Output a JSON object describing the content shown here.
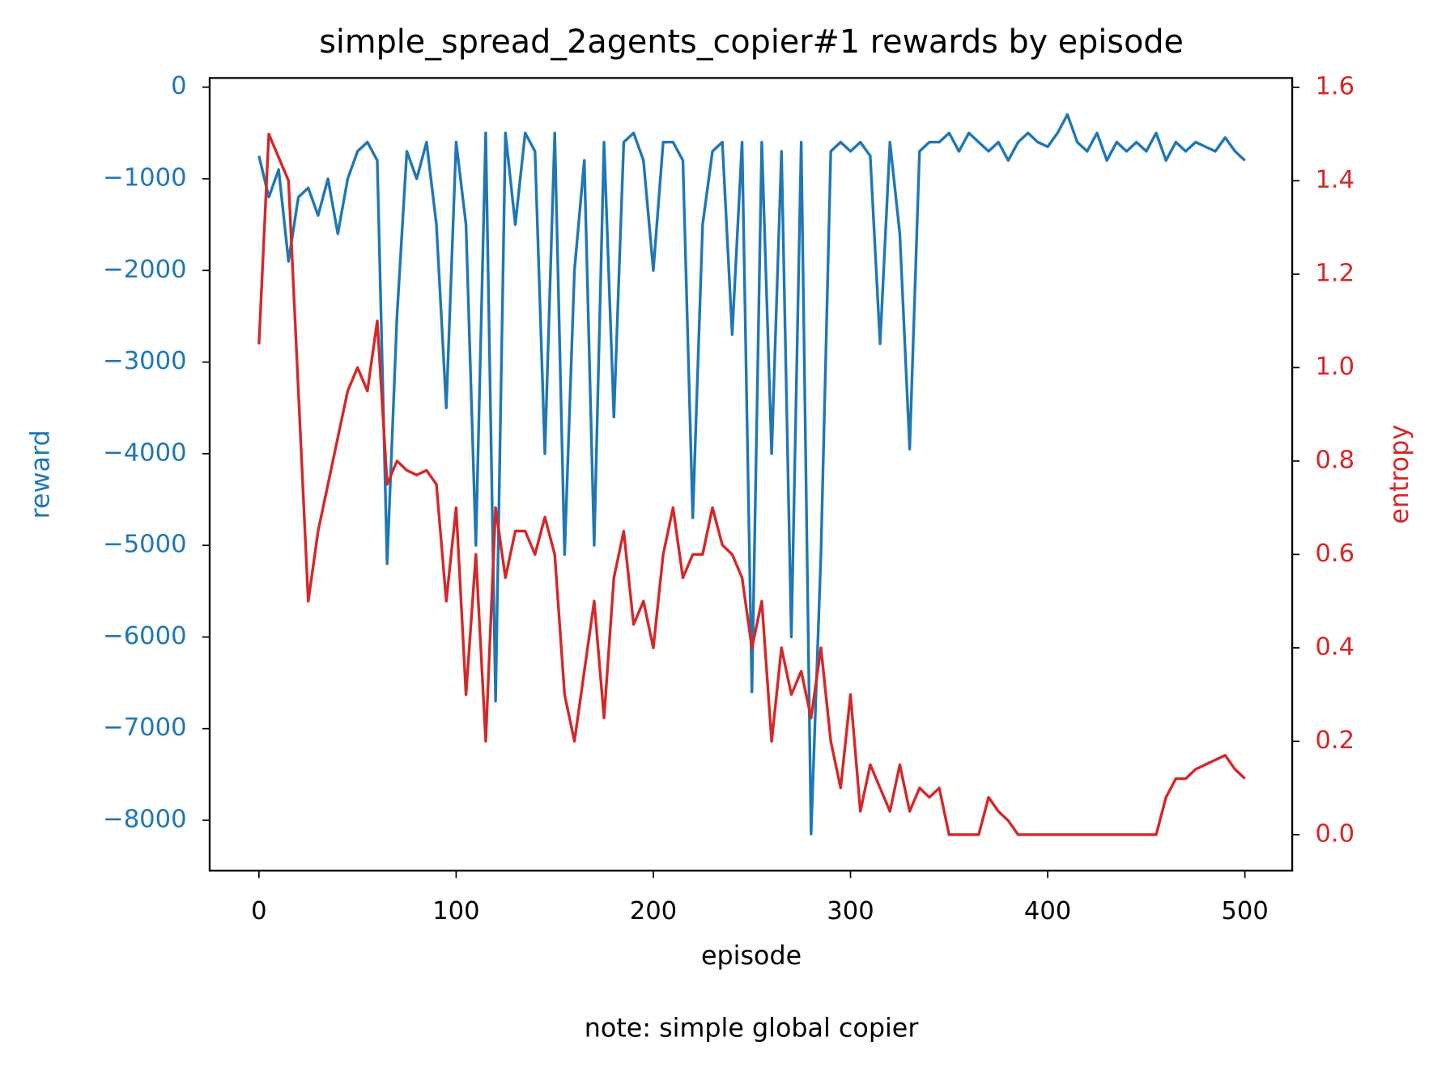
{
  "chart_data": {
    "type": "line",
    "title": "simple_spread_2agents_copier#1 rewards by episode",
    "xlabel": "episode",
    "ylabel": "reward",
    "y2label": "entropy",
    "note": "note: simple global copier",
    "x": [
      0,
      5,
      10,
      15,
      20,
      25,
      30,
      35,
      40,
      45,
      50,
      55,
      60,
      65,
      70,
      75,
      80,
      85,
      90,
      95,
      100,
      105,
      110,
      115,
      120,
      125,
      130,
      135,
      140,
      145,
      150,
      155,
      160,
      165,
      170,
      175,
      180,
      185,
      190,
      195,
      200,
      205,
      210,
      215,
      220,
      225,
      230,
      235,
      240,
      245,
      250,
      255,
      260,
      265,
      270,
      275,
      280,
      285,
      290,
      295,
      300,
      305,
      310,
      315,
      320,
      325,
      330,
      335,
      340,
      345,
      350,
      355,
      360,
      365,
      370,
      375,
      380,
      385,
      390,
      395,
      400,
      405,
      410,
      415,
      420,
      425,
      430,
      435,
      440,
      445,
      450,
      455,
      460,
      465,
      470,
      475,
      480,
      485,
      490,
      495,
      500
    ],
    "series": [
      {
        "name": "reward",
        "color": "#1f77b4",
        "values": [
          -750,
          -1200,
          -900,
          -1900,
          -1200,
          -1100,
          -1400,
          -1000,
          -1600,
          -1000,
          -700,
          -600,
          -800,
          -5200,
          -2500,
          -700,
          -1000,
          -600,
          -1500,
          -3500,
          -600,
          -1500,
          -5000,
          -500,
          -6700,
          -500,
          -1500,
          -500,
          -700,
          -4000,
          -500,
          -5100,
          -2000,
          -800,
          -5000,
          -600,
          -3600,
          -600,
          -500,
          -800,
          -2000,
          -600,
          -600,
          -800,
          -4700,
          -1500,
          -700,
          -600,
          -2700,
          -600,
          -6600,
          -600,
          -4000,
          -700,
          -6000,
          -600,
          -8150,
          -5100,
          -700,
          -600,
          -700,
          -600,
          -750,
          -2800,
          -600,
          -1600,
          -3950,
          -700,
          -600,
          -600,
          -500,
          -700,
          -500,
          -600,
          -700,
          -600,
          -800,
          -600,
          -500,
          -600,
          -650,
          -500,
          -300,
          -600,
          -700,
          -500,
          -800,
          -600,
          -700,
          -600,
          -700,
          -500,
          -800,
          -600,
          -700,
          -600,
          -650,
          -700,
          -550,
          -700,
          -800
        ]
      },
      {
        "name": "entropy",
        "color": "#d62728",
        "axis": "y2",
        "values": [
          1.05,
          1.5,
          1.45,
          1.4,
          0.95,
          0.5,
          0.65,
          0.75,
          0.85,
          0.95,
          1.0,
          0.95,
          1.1,
          0.75,
          0.8,
          0.78,
          0.77,
          0.78,
          0.75,
          0.5,
          0.7,
          0.3,
          0.6,
          0.2,
          0.7,
          0.55,
          0.65,
          0.65,
          0.6,
          0.68,
          0.6,
          0.3,
          0.2,
          0.35,
          0.5,
          0.25,
          0.55,
          0.65,
          0.45,
          0.5,
          0.4,
          0.6,
          0.7,
          0.55,
          0.6,
          0.6,
          0.7,
          0.62,
          0.6,
          0.55,
          0.4,
          0.5,
          0.2,
          0.4,
          0.3,
          0.35,
          0.25,
          0.4,
          0.2,
          0.1,
          0.3,
          0.05,
          0.15,
          0.1,
          0.05,
          0.15,
          0.05,
          0.1,
          0.08,
          0.1,
          0,
          0,
          0,
          0,
          0.08,
          0.05,
          0.03,
          0,
          0,
          0,
          0,
          0,
          0,
          0,
          0,
          0,
          0,
          0,
          0,
          0,
          0,
          0,
          0.08,
          0.12,
          0.12,
          0.14,
          0.15,
          0.16,
          0.17,
          0.14,
          0.12
        ]
      }
    ],
    "xlim": [
      -25,
      524
    ],
    "xticks": [
      0,
      100,
      200,
      300,
      400,
      500
    ],
    "ylim": [
      -8550,
      100
    ],
    "yticks": [
      {
        "value": 0,
        "label": "0"
      },
      {
        "value": -1000,
        "label": "−1000"
      },
      {
        "value": -2000,
        "label": "−2000"
      },
      {
        "value": -3000,
        "label": "−3000"
      },
      {
        "value": -4000,
        "label": "−4000"
      },
      {
        "value": -5000,
        "label": "−5000"
      },
      {
        "value": -6000,
        "label": "−6000"
      },
      {
        "value": -7000,
        "label": "−7000"
      },
      {
        "value": -8000,
        "label": "−8000"
      }
    ],
    "y2lim": [
      -0.077,
      1.62
    ],
    "y2ticks": [
      {
        "value": 0,
        "label": "0.0"
      },
      0.2,
      0.4,
      0.6,
      0.8,
      {
        "value": 1,
        "label": "1.0"
      },
      1.2,
      1.4,
      1.6
    ]
  }
}
